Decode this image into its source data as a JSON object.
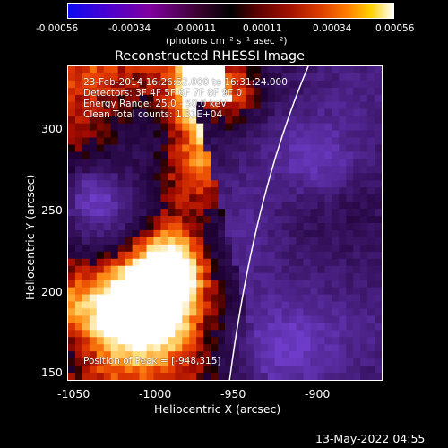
{
  "colorbar": {
    "ticks": [
      "-0.00056",
      "-0.00034",
      "-0.00011",
      "0.00011",
      "0.00034",
      "0.00056"
    ],
    "units": "(photons cm⁻² s⁻¹ asec⁻²)"
  },
  "plot": {
    "title": "Reconstructed RHESSI Image",
    "info_lines": [
      "23-Feb-2014 16:26:52.000 to 16:31:24.000",
      "Detectors: 3F 4F 5F 6F 7F 8F 9F 0",
      "Energy Range: 25.0 - 50.0 keV",
      "Clean     Total counts: 1.31E+04"
    ],
    "peak_label": "Position of Peak = [-948,315]",
    "x_label": "Heliocentric X (arcsec)",
    "y_label": "Heliocentric Y (arcsec)",
    "x_ticks": [
      "-1050",
      "-1000",
      "-950",
      "-900"
    ],
    "y_ticks": [
      "300",
      "250",
      "200",
      "150"
    ]
  },
  "footer": {
    "timestamp": "13-May-2022 04:55"
  }
}
